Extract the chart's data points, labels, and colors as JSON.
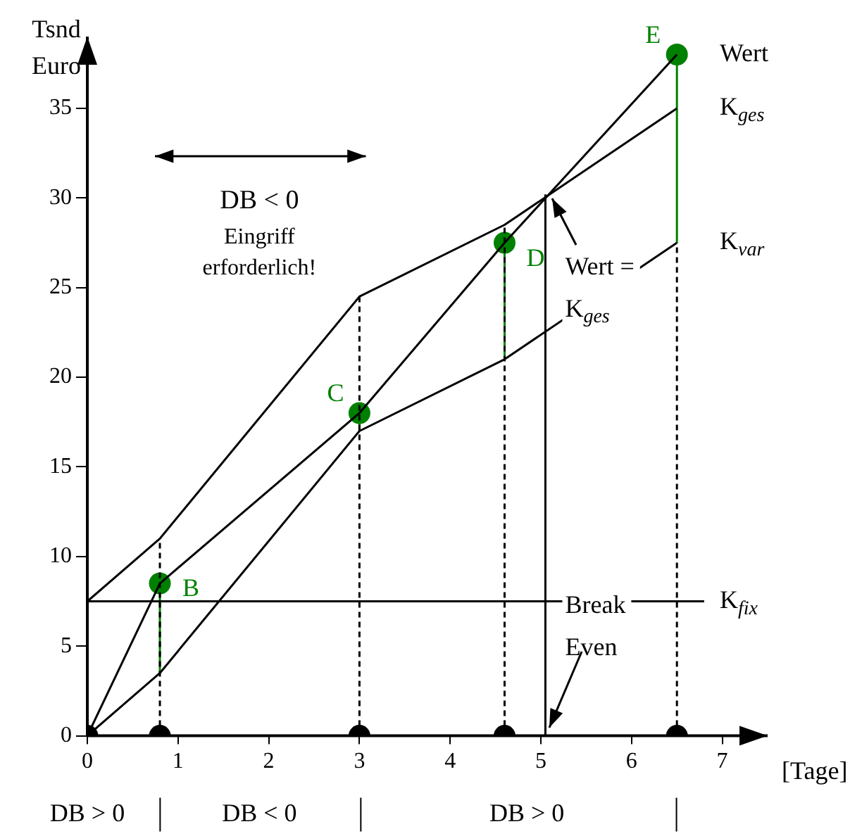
{
  "chart_data": {
    "type": "line",
    "ylabel": "Tsnd\nEuro",
    "xlabel": "[Tage]",
    "xlim": [
      0,
      7.5
    ],
    "xticks": [
      0,
      1,
      2,
      3,
      4,
      5,
      6,
      7
    ],
    "ylim": [
      0,
      39
    ],
    "yticks": [
      0,
      5,
      10,
      15,
      20,
      25,
      30,
      35
    ],
    "grid": false,
    "legend": false,
    "marker": "none",
    "series": [
      {
        "name": "Wert",
        "color": "#000000",
        "x": [
          0,
          0.8,
          3,
          4.6,
          6.5
        ],
        "values": [
          0,
          8.5,
          18,
          27.5,
          38
        ]
      },
      {
        "name": "K$_{ges}$",
        "color": "#000000",
        "x": [
          0,
          0.8,
          3,
          4.6,
          6.5
        ],
        "values": [
          7.5,
          11,
          24.5,
          28.5,
          35
        ]
      },
      {
        "name": "K$_{var}$",
        "color": "#000000",
        "x": [
          0,
          0.8,
          3,
          4.6,
          6.5
        ],
        "values": [
          0,
          3.5,
          17,
          21,
          27.5
        ]
      },
      {
        "name": "K$_{fix}$",
        "color": "#000000",
        "x": [
          0,
          6.8
        ],
        "values": [
          7.5,
          7.5
        ]
      },
      {
        "color": "#000000",
        "line_style": "dashed",
        "x": [
          0.8,
          0.8
        ],
        "values": [
          0,
          11
        ]
      },
      {
        "color": "#000000",
        "line_style": "dashed",
        "x": [
          3,
          3
        ],
        "values": [
          0,
          24.5
        ]
      },
      {
        "color": "#000000",
        "line_style": "dashed",
        "x": [
          4.6,
          4.6
        ],
        "values": [
          0,
          28.5
        ]
      },
      {
        "color": "#000000",
        "line_style": "dashed",
        "x": [
          6.5,
          6.5
        ],
        "values": [
          0,
          27.5
        ]
      },
      {
        "color": "#000000",
        "x": [
          5.05,
          5.05
        ],
        "values": [
          0,
          30.2
        ]
      },
      {
        "color": "#008000",
        "x": [
          0.8,
          0.8
        ],
        "values": [
          3.5,
          8.5
        ]
      },
      {
        "color": "#008000",
        "x": [
          3,
          3
        ],
        "values": [
          17,
          18
        ]
      },
      {
        "color": "#008000",
        "x": [
          4.6,
          4.6
        ],
        "values": [
          21,
          27.5
        ]
      },
      {
        "color": "#008000",
        "x": [
          6.5,
          6.5
        ],
        "values": [
          27.5,
          38
        ]
      },
      {
        "type": "scatter",
        "marker": "circle",
        "color": "#000000",
        "x": [
          0,
          0.8,
          3,
          4.6,
          6.5
        ],
        "values": [
          0,
          0,
          0,
          0,
          0
        ]
      },
      {
        "type": "scatter",
        "marker": "circle",
        "color": "#008000",
        "x": [
          0.8,
          3,
          4.6,
          6.5
        ],
        "values": [
          8.5,
          18,
          27.5,
          38
        ],
        "value_labels": [
          "B",
          "C",
          "D",
          "E"
        ]
      }
    ],
    "annotations": [
      "DB < 0\nEingriff\nerforderlich!",
      {
        "text": "Wert =\nK$_{ges}$",
        "x": 5.05,
        "y": 30.2
      },
      {
        "text": "Break\nEven",
        "x": 5.05,
        "y": 0
      },
      "DB > 0",
      "DB < 0",
      "DB > 0"
    ]
  }
}
